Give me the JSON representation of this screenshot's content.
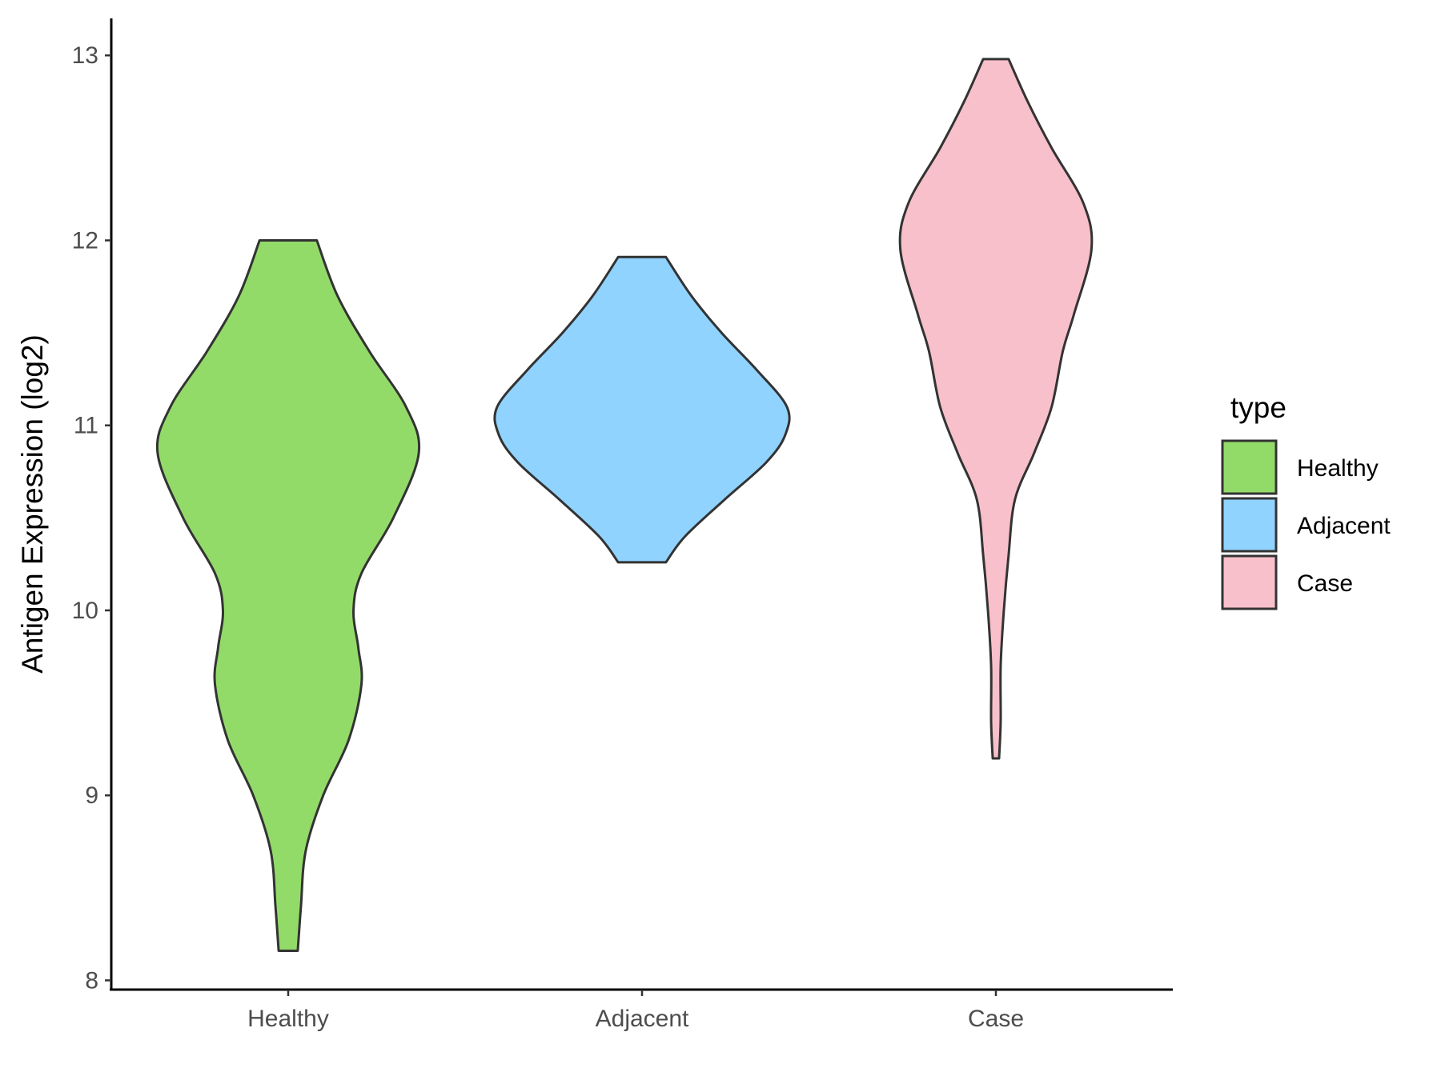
{
  "chart_data": {
    "type": "violin",
    "xlabel": "",
    "ylabel": "Antigen Expression (log2)",
    "ylim": [
      7.95,
      13.2
    ],
    "yticks": [
      8,
      9,
      10,
      11,
      12,
      13
    ],
    "grid": false,
    "categories": [
      "Healthy",
      "Adjacent",
      "Case"
    ],
    "legend": {
      "title": "type",
      "position": "right",
      "entries": [
        "Healthy",
        "Adjacent",
        "Case"
      ]
    },
    "series": [
      {
        "category": "Healthy",
        "color": "#93DB69",
        "min": 8.16,
        "max": 12.0,
        "density": [
          [
            8.16,
            0.06
          ],
          [
            8.4,
            0.08
          ],
          [
            8.7,
            0.11
          ],
          [
            9.0,
            0.22
          ],
          [
            9.3,
            0.38
          ],
          [
            9.6,
            0.46
          ],
          [
            9.8,
            0.44
          ],
          [
            10.0,
            0.41
          ],
          [
            10.2,
            0.46
          ],
          [
            10.5,
            0.66
          ],
          [
            10.85,
            0.82
          ],
          [
            11.1,
            0.74
          ],
          [
            11.4,
            0.51
          ],
          [
            11.7,
            0.31
          ],
          [
            12.0,
            0.18
          ]
        ]
      },
      {
        "category": "Adjacent",
        "color": "#91D3FF",
        "min": 10.26,
        "max": 11.91,
        "density": [
          [
            10.26,
            0.15
          ],
          [
            10.4,
            0.27
          ],
          [
            10.6,
            0.52
          ],
          [
            10.8,
            0.78
          ],
          [
            10.95,
            0.9
          ],
          [
            11.1,
            0.91
          ],
          [
            11.3,
            0.72
          ],
          [
            11.5,
            0.5
          ],
          [
            11.7,
            0.31
          ],
          [
            11.91,
            0.15
          ]
        ]
      },
      {
        "category": "Case",
        "color": "#F8C0CB",
        "min": 9.2,
        "max": 12.98,
        "density": [
          [
            9.2,
            0.02
          ],
          [
            9.4,
            0.03
          ],
          [
            9.7,
            0.03
          ],
          [
            10.0,
            0.05
          ],
          [
            10.3,
            0.08
          ],
          [
            10.6,
            0.12
          ],
          [
            10.85,
            0.24
          ],
          [
            11.1,
            0.35
          ],
          [
            11.4,
            0.42
          ],
          [
            11.6,
            0.49
          ],
          [
            11.95,
            0.6
          ],
          [
            12.2,
            0.55
          ],
          [
            12.5,
            0.35
          ],
          [
            12.75,
            0.2
          ],
          [
            12.98,
            0.08
          ]
        ]
      }
    ]
  }
}
